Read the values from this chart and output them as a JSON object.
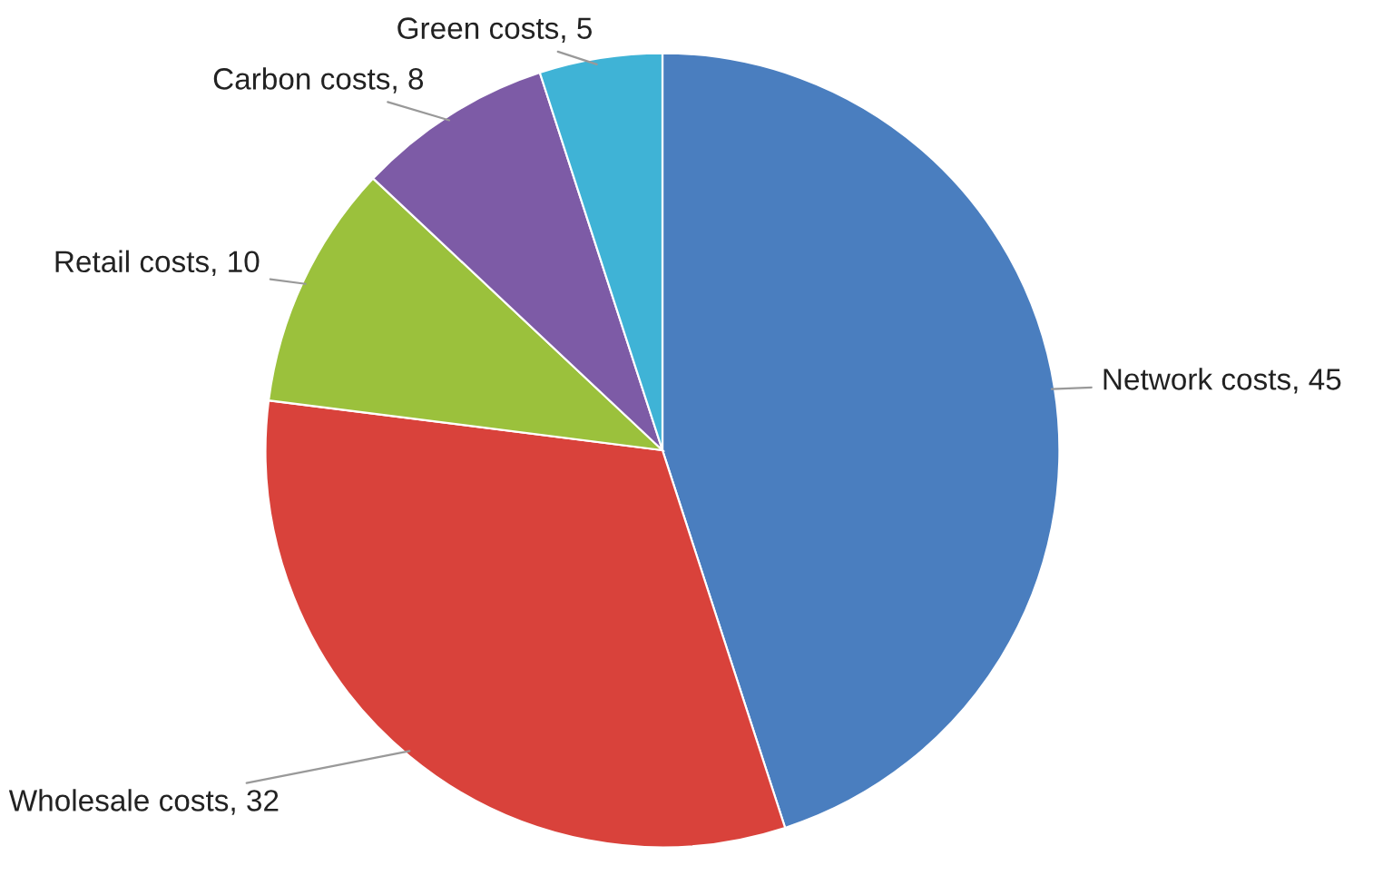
{
  "chart_data": {
    "type": "pie",
    "categories": [
      "Network costs, 45",
      "Wholesale costs, 32",
      "Retail costs, 10",
      "Carbon costs, 8",
      "Green costs, 5"
    ],
    "values": [
      45,
      32,
      10,
      8,
      5
    ],
    "colors": [
      "#4a7ebf",
      "#d9423b",
      "#9bc13c",
      "#7d5ba6",
      "#3fb3d6"
    ]
  }
}
